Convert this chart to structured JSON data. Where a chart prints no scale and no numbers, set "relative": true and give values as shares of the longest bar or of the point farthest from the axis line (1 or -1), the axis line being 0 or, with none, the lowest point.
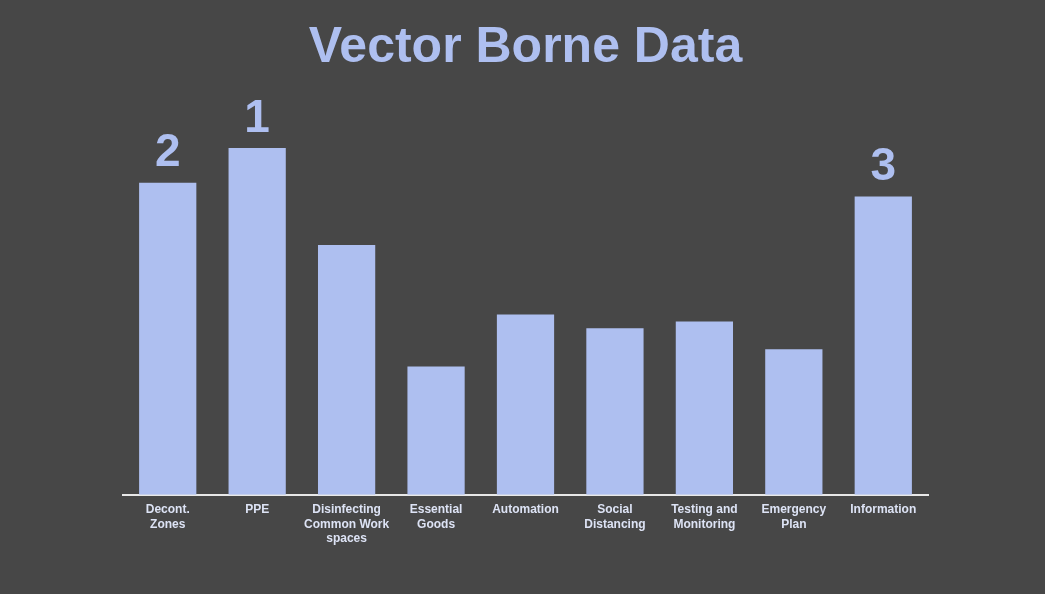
{
  "chart_data": {
    "type": "bar",
    "title": "Vector Borne Data",
    "relative": true,
    "categories": [
      "Decont. Zones",
      "PPE",
      "Disinfecting Common Work spaces",
      "Essential Goods",
      "Automation",
      "Social Distancing",
      "Testing and Monitoring",
      "Emergency Plan",
      "Information"
    ],
    "values": [
      0.9,
      1,
      0.72,
      0.37,
      0.52,
      0.48,
      0.5,
      0.42,
      0.86
    ],
    "annotations": [
      {
        "text": "2",
        "x": "Decont. Zones",
        "y": 0.9
      },
      {
        "text": "1",
        "x": "PPE",
        "y": 1
      },
      {
        "text": "3",
        "x": "Information",
        "y": 0.86
      }
    ],
    "color": "#aebff0",
    "grid": false,
    "legend": false
  }
}
